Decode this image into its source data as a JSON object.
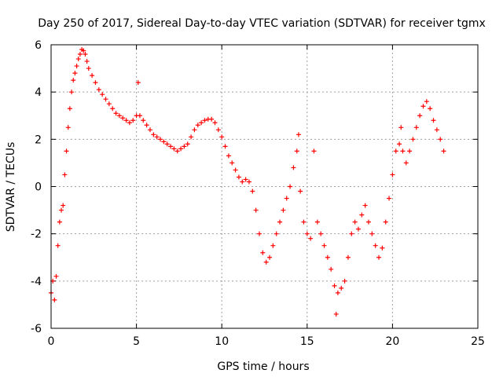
{
  "chart_data": {
    "type": "scatter",
    "title": "Day 250 of 2017, Sidereal Day-to-day VTEC variation (SDTVAR) for receiver tgmx",
    "xlabel": "GPS time / hours",
    "ylabel": "SDTVAR / TECUs",
    "xlim": [
      0,
      25
    ],
    "ylim": [
      -6,
      6
    ],
    "x_ticks": [
      0,
      5,
      10,
      15,
      20,
      25
    ],
    "y_ticks": [
      -6,
      -4,
      -2,
      0,
      2,
      4,
      6
    ],
    "grid": true,
    "marker": "+",
    "series": [
      {
        "name": "SDTVAR",
        "color": "#ff0000",
        "points": [
          [
            0.0,
            -4.5
          ],
          [
            0.1,
            -4.0
          ],
          [
            0.2,
            -4.8
          ],
          [
            0.3,
            -3.8
          ],
          [
            0.4,
            -2.5
          ],
          [
            0.5,
            -1.5
          ],
          [
            0.6,
            -1.0
          ],
          [
            0.7,
            -0.8
          ],
          [
            0.8,
            0.5
          ],
          [
            0.9,
            1.5
          ],
          [
            1.0,
            2.5
          ],
          [
            1.1,
            3.3
          ],
          [
            1.2,
            4.0
          ],
          [
            1.3,
            4.5
          ],
          [
            1.4,
            4.8
          ],
          [
            1.5,
            5.1
          ],
          [
            1.6,
            5.4
          ],
          [
            1.7,
            5.6
          ],
          [
            1.8,
            5.8
          ],
          [
            1.9,
            5.75
          ],
          [
            2.0,
            5.6
          ],
          [
            2.1,
            5.3
          ],
          [
            2.2,
            5.0
          ],
          [
            2.4,
            4.7
          ],
          [
            2.6,
            4.4
          ],
          [
            2.8,
            4.1
          ],
          [
            3.0,
            3.9
          ],
          [
            3.2,
            3.7
          ],
          [
            3.4,
            3.5
          ],
          [
            3.6,
            3.3
          ],
          [
            3.8,
            3.1
          ],
          [
            4.0,
            3.0
          ],
          [
            4.2,
            2.9
          ],
          [
            4.4,
            2.8
          ],
          [
            4.6,
            2.7
          ],
          [
            4.8,
            2.8
          ],
          [
            5.0,
            3.0
          ],
          [
            5.1,
            4.4
          ],
          [
            5.2,
            3.0
          ],
          [
            5.4,
            2.8
          ],
          [
            5.6,
            2.6
          ],
          [
            5.8,
            2.4
          ],
          [
            6.0,
            2.2
          ],
          [
            6.2,
            2.1
          ],
          [
            6.4,
            2.0
          ],
          [
            6.6,
            1.9
          ],
          [
            6.8,
            1.8
          ],
          [
            7.0,
            1.7
          ],
          [
            7.2,
            1.6
          ],
          [
            7.4,
            1.5
          ],
          [
            7.6,
            1.6
          ],
          [
            7.8,
            1.7
          ],
          [
            8.0,
            1.8
          ],
          [
            8.2,
            2.1
          ],
          [
            8.4,
            2.4
          ],
          [
            8.6,
            2.6
          ],
          [
            8.8,
            2.7
          ],
          [
            9.0,
            2.8
          ],
          [
            9.2,
            2.85
          ],
          [
            9.4,
            2.85
          ],
          [
            9.6,
            2.7
          ],
          [
            9.8,
            2.4
          ],
          [
            10.0,
            2.1
          ],
          [
            10.2,
            1.7
          ],
          [
            10.4,
            1.3
          ],
          [
            10.6,
            1.0
          ],
          [
            10.8,
            0.7
          ],
          [
            11.0,
            0.4
          ],
          [
            11.2,
            0.2
          ],
          [
            11.4,
            0.3
          ],
          [
            11.6,
            0.2
          ],
          [
            11.8,
            -0.2
          ],
          [
            12.0,
            -1.0
          ],
          [
            12.2,
            -2.0
          ],
          [
            12.4,
            -2.8
          ],
          [
            12.6,
            -3.2
          ],
          [
            12.8,
            -3.0
          ],
          [
            13.0,
            -2.5
          ],
          [
            13.2,
            -2.0
          ],
          [
            13.4,
            -1.5
          ],
          [
            13.6,
            -1.0
          ],
          [
            13.8,
            -0.5
          ],
          [
            14.0,
            0.0
          ],
          [
            14.2,
            0.8
          ],
          [
            14.4,
            1.5
          ],
          [
            14.5,
            2.2
          ],
          [
            14.6,
            -0.2
          ],
          [
            14.8,
            -1.5
          ],
          [
            15.0,
            -2.0
          ],
          [
            15.2,
            -2.2
          ],
          [
            15.4,
            1.5
          ],
          [
            15.6,
            -1.5
          ],
          [
            15.8,
            -2.0
          ],
          [
            16.0,
            -2.5
          ],
          [
            16.2,
            -3.0
          ],
          [
            16.4,
            -3.5
          ],
          [
            16.6,
            -4.2
          ],
          [
            16.7,
            -5.4
          ],
          [
            16.8,
            -4.5
          ],
          [
            17.0,
            -4.3
          ],
          [
            17.2,
            -4.0
          ],
          [
            17.4,
            -3.0
          ],
          [
            17.6,
            -2.0
          ],
          [
            17.8,
            -1.5
          ],
          [
            18.0,
            -1.8
          ],
          [
            18.2,
            -1.2
          ],
          [
            18.4,
            -0.8
          ],
          [
            18.6,
            -1.5
          ],
          [
            18.8,
            -2.0
          ],
          [
            19.0,
            -2.5
          ],
          [
            19.2,
            -3.0
          ],
          [
            19.4,
            -2.6
          ],
          [
            19.6,
            -1.5
          ],
          [
            19.8,
            -0.5
          ],
          [
            20.0,
            0.5
          ],
          [
            20.2,
            1.5
          ],
          [
            20.4,
            1.8
          ],
          [
            20.5,
            2.5
          ],
          [
            20.6,
            1.5
          ],
          [
            20.8,
            1.0
          ],
          [
            21.0,
            1.5
          ],
          [
            21.2,
            2.0
          ],
          [
            21.4,
            2.5
          ],
          [
            21.6,
            3.0
          ],
          [
            21.8,
            3.4
          ],
          [
            22.0,
            3.6
          ],
          [
            22.2,
            3.3
          ],
          [
            22.4,
            2.8
          ],
          [
            22.6,
            2.4
          ],
          [
            22.8,
            2.0
          ],
          [
            23.0,
            1.5
          ]
        ]
      }
    ]
  }
}
